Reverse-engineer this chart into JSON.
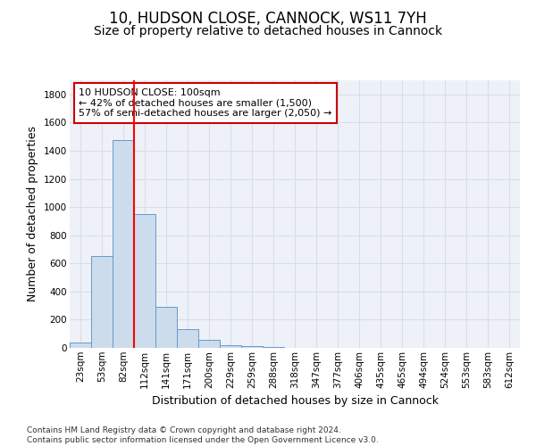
{
  "title_line1": "10, HUDSON CLOSE, CANNOCK, WS11 7YH",
  "title_line2": "Size of property relative to detached houses in Cannock",
  "xlabel": "Distribution of detached houses by size in Cannock",
  "ylabel": "Number of detached properties",
  "bar_labels": [
    "23sqm",
    "53sqm",
    "82sqm",
    "112sqm",
    "141sqm",
    "171sqm",
    "200sqm",
    "229sqm",
    "259sqm",
    "288sqm",
    "318sqm",
    "347sqm",
    "377sqm",
    "406sqm",
    "435sqm",
    "465sqm",
    "494sqm",
    "524sqm",
    "553sqm",
    "583sqm",
    "612sqm"
  ],
  "bar_values": [
    40,
    650,
    1475,
    950,
    290,
    130,
    60,
    20,
    10,
    5,
    0,
    0,
    0,
    0,
    0,
    0,
    0,
    0,
    0,
    0,
    0
  ],
  "bar_color": "#ccdcec",
  "bar_edge_color": "#6699cc",
  "ylim": [
    0,
    1900
  ],
  "yticks": [
    0,
    200,
    400,
    600,
    800,
    1000,
    1200,
    1400,
    1600,
    1800
  ],
  "red_line_x": 2.5,
  "annotation_text_line1": "10 HUDSON CLOSE: 100sqm",
  "annotation_text_line2": "← 42% of detached houses are smaller (1,500)",
  "annotation_text_line3": "57% of semi-detached houses are larger (2,050) →",
  "annotation_box_facecolor": "#ffffff",
  "annotation_box_edgecolor": "#cc0000",
  "footer_line1": "Contains HM Land Registry data © Crown copyright and database right 2024.",
  "footer_line2": "Contains public sector information licensed under the Open Government Licence v3.0.",
  "bg_color": "#eef2f8",
  "grid_color": "#d8dde8",
  "title1_fontsize": 12,
  "title2_fontsize": 10,
  "ylabel_fontsize": 9,
  "xlabel_fontsize": 9,
  "tick_fontsize": 7.5,
  "annotation_fontsize": 8,
  "footer_fontsize": 6.5
}
